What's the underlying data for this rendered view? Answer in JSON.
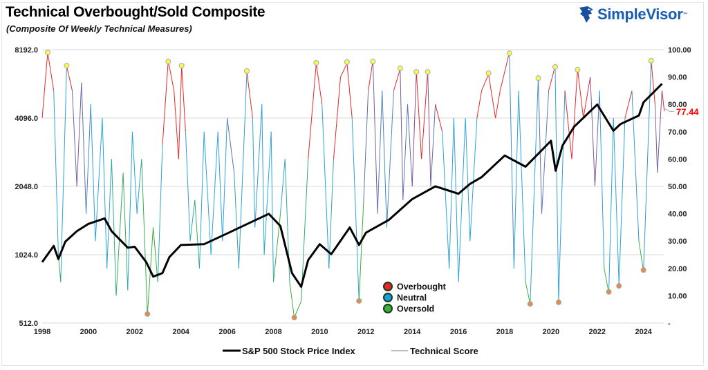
{
  "header": {
    "title": "Technical Overbought/Sold Composite",
    "subtitle": "(Composite Of Weekly Technical Measures)",
    "logo": "SimpleVisor",
    "logo_tm": "™"
  },
  "chart_data": {
    "type": "line",
    "title": "Technical Overbought/Sold Composite",
    "subtitle": "(Composite Of Weekly Technical Measures)",
    "grid": true,
    "legend_position": "bottom",
    "x_ticks": [
      "1998",
      "2000",
      "2002",
      "2004",
      "2006",
      "2008",
      "2010",
      "2012",
      "2014",
      "2016",
      "2018",
      "2020",
      "2022",
      "2024"
    ],
    "xlim": [
      1998,
      2025
    ],
    "left_axis": {
      "scale": "log2",
      "ylim": [
        512,
        8192
      ],
      "ticks": [
        "512.0",
        "1024.0",
        "2048.0",
        "4096.0",
        "8192.0"
      ]
    },
    "right_axis": {
      "ylim": [
        0,
        100
      ],
      "ticks": [
        "-",
        "10.00",
        "20.00",
        "30.00",
        "40.00",
        "50.00",
        "60.00",
        "70.00",
        "80.00",
        "90.00",
        "100.00"
      ]
    },
    "last_value_label": "77.44",
    "colors": {
      "overbought": "#e8262a",
      "neutral": "#2aa3dd",
      "oversold": "#3cae3c",
      "sp500": "#000000",
      "overbought_marker": "#ffff33",
      "oversold_marker": "#f08a3c",
      "last_value": "#ff0000"
    },
    "inner_legend": [
      {
        "label": "Overbought",
        "color": "#e8262a"
      },
      {
        "label": "Neutral",
        "color": "#1a9de0"
      },
      {
        "label": "Oversold",
        "color": "#3cae3c"
      }
    ],
    "series": [
      {
        "name": "S&P 500 Stock Price Index",
        "axis": "left",
        "points": [
          [
            1998.0,
            950
          ],
          [
            1998.5,
            1120
          ],
          [
            1998.7,
            980
          ],
          [
            1999.0,
            1170
          ],
          [
            1999.5,
            1300
          ],
          [
            2000.0,
            1400
          ],
          [
            2000.7,
            1480
          ],
          [
            2001.0,
            1300
          ],
          [
            2001.7,
            1100
          ],
          [
            2002.0,
            1110
          ],
          [
            2002.5,
            950
          ],
          [
            2002.8,
            820
          ],
          [
            2003.2,
            850
          ],
          [
            2003.5,
            1000
          ],
          [
            2004.0,
            1130
          ],
          [
            2005.0,
            1140
          ],
          [
            2006.0,
            1270
          ],
          [
            2007.0,
            1420
          ],
          [
            2007.8,
            1550
          ],
          [
            2008.3,
            1370
          ],
          [
            2008.8,
            850
          ],
          [
            2009.2,
            740
          ],
          [
            2009.5,
            970
          ],
          [
            2010.0,
            1140
          ],
          [
            2010.5,
            1030
          ],
          [
            2011.3,
            1350
          ],
          [
            2011.7,
            1130
          ],
          [
            2012.0,
            1280
          ],
          [
            2013.0,
            1460
          ],
          [
            2014.0,
            1800
          ],
          [
            2015.0,
            2050
          ],
          [
            2016.0,
            1900
          ],
          [
            2016.5,
            2100
          ],
          [
            2017.0,
            2250
          ],
          [
            2018.0,
            2800
          ],
          [
            2018.9,
            2500
          ],
          [
            2020.0,
            3250
          ],
          [
            2020.2,
            2400
          ],
          [
            2020.5,
            3100
          ],
          [
            2021.0,
            3750
          ],
          [
            2022.0,
            4700
          ],
          [
            2022.7,
            3600
          ],
          [
            2023.0,
            3850
          ],
          [
            2023.8,
            4200
          ],
          [
            2024.0,
            4800
          ],
          [
            2024.8,
            5800
          ]
        ]
      },
      {
        "name": "Technical Score",
        "axis": "right",
        "points": [
          [
            1998.0,
            75
          ],
          [
            1998.24,
            99
          ],
          [
            1998.5,
            85
          ],
          [
            1998.7,
            25
          ],
          [
            1998.8,
            15
          ],
          [
            1999.06,
            94
          ],
          [
            1999.3,
            85
          ],
          [
            1999.5,
            50
          ],
          [
            1999.7,
            88
          ],
          [
            1999.9,
            40
          ],
          [
            2000.1,
            80
          ],
          [
            2000.3,
            30
          ],
          [
            2000.6,
            75
          ],
          [
            2000.8,
            20
          ],
          [
            2001.0,
            60
          ],
          [
            2001.2,
            10
          ],
          [
            2001.5,
            55
          ],
          [
            2001.7,
            12
          ],
          [
            2001.9,
            70
          ],
          [
            2002.1,
            40
          ],
          [
            2002.3,
            60
          ],
          [
            2002.55,
            3
          ],
          [
            2002.8,
            35
          ],
          [
            2003.0,
            15
          ],
          [
            2003.2,
            65
          ],
          [
            2003.45,
            96
          ],
          [
            2003.7,
            85
          ],
          [
            2003.9,
            60
          ],
          [
            2004.03,
            94
          ],
          [
            2004.2,
            70
          ],
          [
            2004.4,
            30
          ],
          [
            2004.6,
            45
          ],
          [
            2004.8,
            20
          ],
          [
            2005.0,
            70
          ],
          [
            2005.3,
            25
          ],
          [
            2005.6,
            70
          ],
          [
            2005.8,
            30
          ],
          [
            2006.0,
            75
          ],
          [
            2006.3,
            55
          ],
          [
            2006.5,
            20
          ],
          [
            2006.85,
            92
          ],
          [
            2007.1,
            75
          ],
          [
            2007.2,
            35
          ],
          [
            2007.5,
            80
          ],
          [
            2007.6,
            25
          ],
          [
            2007.9,
            70
          ],
          [
            2008.0,
            15
          ],
          [
            2008.3,
            40
          ],
          [
            2008.5,
            60
          ],
          [
            2008.7,
            15
          ],
          [
            2008.9,
            2
          ],
          [
            2009.2,
            8
          ],
          [
            2009.5,
            60
          ],
          [
            2009.85,
            95
          ],
          [
            2010.1,
            80
          ],
          [
            2010.4,
            20
          ],
          [
            2010.6,
            60
          ],
          [
            2010.9,
            90
          ],
          [
            2011.18,
            95
          ],
          [
            2011.4,
            75
          ],
          [
            2011.7,
            8
          ],
          [
            2011.9,
            45
          ],
          [
            2012.1,
            85
          ],
          [
            2012.3,
            96
          ],
          [
            2012.5,
            40
          ],
          [
            2012.7,
            85
          ],
          [
            2012.9,
            35
          ],
          [
            2013.2,
            85
          ],
          [
            2013.48,
            93
          ],
          [
            2013.6,
            45
          ],
          [
            2013.8,
            80
          ],
          [
            2014.0,
            50
          ],
          [
            2014.18,
            92
          ],
          [
            2014.4,
            60
          ],
          [
            2014.67,
            92
          ],
          [
            2014.8,
            50
          ],
          [
            2015.0,
            80
          ],
          [
            2015.3,
            70
          ],
          [
            2015.6,
            20
          ],
          [
            2015.8,
            75
          ],
          [
            2016.0,
            15
          ],
          [
            2016.3,
            75
          ],
          [
            2016.5,
            30
          ],
          [
            2016.8,
            75
          ],
          [
            2017.0,
            85
          ],
          [
            2017.3,
            91
          ],
          [
            2017.6,
            75
          ],
          [
            2017.8,
            85
          ],
          [
            2018.2,
            99
          ],
          [
            2018.4,
            20
          ],
          [
            2018.6,
            85
          ],
          [
            2018.9,
            15
          ],
          [
            2019.1,
            7
          ],
          [
            2019.45,
            90
          ],
          [
            2019.6,
            40
          ],
          [
            2019.9,
            85
          ],
          [
            2020.18,
            94
          ],
          [
            2020.33,
            8
          ],
          [
            2020.6,
            85
          ],
          [
            2020.9,
            60
          ],
          [
            2021.15,
            93
          ],
          [
            2021.4,
            75
          ],
          [
            2021.7,
            90
          ],
          [
            2021.9,
            50
          ],
          [
            2022.1,
            85
          ],
          [
            2022.3,
            20
          ],
          [
            2022.5,
            11
          ],
          [
            2022.7,
            75
          ],
          [
            2022.94,
            14
          ],
          [
            2023.2,
            75
          ],
          [
            2023.5,
            85
          ],
          [
            2023.8,
            30
          ],
          [
            2024.0,
            19
          ],
          [
            2024.33,
            96
          ],
          [
            2024.5,
            80
          ],
          [
            2024.6,
            55
          ],
          [
            2024.8,
            85
          ],
          [
            2024.9,
            77.44
          ]
        ]
      }
    ],
    "overbought_markers": [
      [
        1998.24,
        99
      ],
      [
        1999.06,
        94.2
      ],
      [
        2003.45,
        95.7
      ],
      [
        2004.03,
        94.2
      ],
      [
        2006.85,
        92.2
      ],
      [
        2009.85,
        95.2
      ],
      [
        2011.18,
        95.5
      ],
      [
        2012.3,
        95.7
      ],
      [
        2013.48,
        93.2
      ],
      [
        2014.18,
        91.9
      ],
      [
        2014.67,
        91.9
      ],
      [
        2017.3,
        91.4
      ],
      [
        2018.2,
        98.7
      ],
      [
        2019.45,
        89.6
      ],
      [
        2020.18,
        93.7
      ],
      [
        2021.15,
        92.7
      ],
      [
        2024.33,
        96
      ]
    ],
    "oversold_markers": [
      [
        2002.55,
        3.3
      ],
      [
        2008.9,
        2
      ],
      [
        2011.7,
        8.1
      ],
      [
        2019.1,
        7
      ],
      [
        2020.33,
        7.6
      ],
      [
        2022.5,
        11.4
      ],
      [
        2022.94,
        13.6
      ],
      [
        2024.0,
        19.4
      ]
    ]
  }
}
